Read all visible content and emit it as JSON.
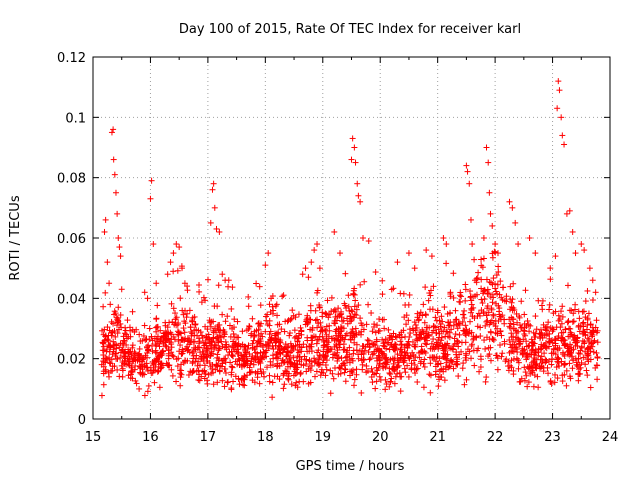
{
  "chart_data": {
    "type": "scatter",
    "title": "Day 100 of 2015, Rate Of TEC Index for receiver karl",
    "xlabel": "GPS time / hours",
    "ylabel": "ROTI / TECUs",
    "xlim": [
      15,
      24
    ],
    "ylim": [
      0,
      0.12
    ],
    "x_ticks": [
      15,
      16,
      17,
      18,
      19,
      20,
      21,
      22,
      23,
      24
    ],
    "x_tick_labels": [
      "15",
      "16",
      "17",
      "18",
      "19",
      "20",
      "21",
      "22",
      "23",
      "24"
    ],
    "y_ticks": [
      0,
      0.02,
      0.04,
      0.06,
      0.08,
      0.1,
      0.12
    ],
    "y_tick_labels": [
      "0",
      "0.02",
      "0.04",
      "0.06",
      "0.08",
      "0.1",
      "0.12"
    ],
    "grid": true,
    "marker": "+",
    "marker_color": "#ff0000",
    "series": [
      {
        "name": "ROTI",
        "points": [
          [
            15.2,
            0.062
          ],
          [
            15.22,
            0.066
          ],
          [
            15.25,
            0.052
          ],
          [
            15.28,
            0.045
          ],
          [
            15.3,
            0.038
          ],
          [
            15.33,
            0.095
          ],
          [
            15.35,
            0.096
          ],
          [
            15.36,
            0.086
          ],
          [
            15.38,
            0.081
          ],
          [
            15.4,
            0.075
          ],
          [
            15.42,
            0.068
          ],
          [
            15.44,
            0.06
          ],
          [
            15.46,
            0.057
          ],
          [
            15.48,
            0.054
          ],
          [
            15.5,
            0.043
          ],
          [
            15.9,
            0.042
          ],
          [
            15.95,
            0.04
          ],
          [
            16.0,
            0.073
          ],
          [
            16.02,
            0.079
          ],
          [
            16.05,
            0.058
          ],
          [
            16.1,
            0.045
          ],
          [
            16.3,
            0.048
          ],
          [
            16.35,
            0.052
          ],
          [
            16.4,
            0.055
          ],
          [
            16.45,
            0.058
          ],
          [
            16.5,
            0.057
          ],
          [
            16.55,
            0.05
          ],
          [
            16.6,
            0.045
          ],
          [
            17.05,
            0.065
          ],
          [
            17.08,
            0.076
          ],
          [
            17.1,
            0.078
          ],
          [
            17.12,
            0.07
          ],
          [
            17.15,
            0.063
          ],
          [
            17.2,
            0.062
          ],
          [
            17.25,
            0.048
          ],
          [
            17.3,
            0.046
          ],
          [
            18.0,
            0.051
          ],
          [
            18.05,
            0.055
          ],
          [
            18.1,
            0.04
          ],
          [
            18.2,
            0.038
          ],
          [
            18.65,
            0.048
          ],
          [
            18.7,
            0.05
          ],
          [
            18.75,
            0.047
          ],
          [
            18.8,
            0.052
          ],
          [
            18.85,
            0.056
          ],
          [
            18.9,
            0.058
          ],
          [
            18.95,
            0.05
          ],
          [
            19.2,
            0.062
          ],
          [
            19.3,
            0.055
          ],
          [
            19.5,
            0.086
          ],
          [
            19.52,
            0.093
          ],
          [
            19.55,
            0.09
          ],
          [
            19.57,
            0.085
          ],
          [
            19.6,
            0.078
          ],
          [
            19.62,
            0.074
          ],
          [
            19.65,
            0.072
          ],
          [
            19.7,
            0.06
          ],
          [
            19.8,
            0.059
          ],
          [
            20.3,
            0.052
          ],
          [
            20.5,
            0.055
          ],
          [
            20.6,
            0.05
          ],
          [
            20.8,
            0.056
          ],
          [
            20.9,
            0.054
          ],
          [
            21.1,
            0.06
          ],
          [
            21.15,
            0.058
          ],
          [
            21.5,
            0.084
          ],
          [
            21.52,
            0.082
          ],
          [
            21.55,
            0.078
          ],
          [
            21.58,
            0.066
          ],
          [
            21.6,
            0.058
          ],
          [
            21.85,
            0.09
          ],
          [
            21.88,
            0.085
          ],
          [
            21.9,
            0.075
          ],
          [
            21.92,
            0.068
          ],
          [
            21.95,
            0.064
          ],
          [
            22.0,
            0.058
          ],
          [
            22.05,
            0.055
          ],
          [
            22.25,
            0.072
          ],
          [
            22.3,
            0.07
          ],
          [
            22.35,
            0.065
          ],
          [
            22.4,
            0.058
          ],
          [
            22.6,
            0.06
          ],
          [
            22.7,
            0.055
          ],
          [
            23.05,
            0.054
          ],
          [
            23.08,
            0.103
          ],
          [
            23.1,
            0.112
          ],
          [
            23.12,
            0.109
          ],
          [
            23.15,
            0.1
          ],
          [
            23.17,
            0.094
          ],
          [
            23.2,
            0.091
          ],
          [
            23.25,
            0.068
          ],
          [
            23.3,
            0.069
          ],
          [
            23.35,
            0.062
          ],
          [
            23.4,
            0.055
          ],
          [
            23.5,
            0.058
          ],
          [
            23.55,
            0.056
          ],
          [
            23.65,
            0.05
          ],
          [
            23.7,
            0.046
          ],
          [
            23.75,
            0.042
          ]
        ]
      }
    ]
  }
}
